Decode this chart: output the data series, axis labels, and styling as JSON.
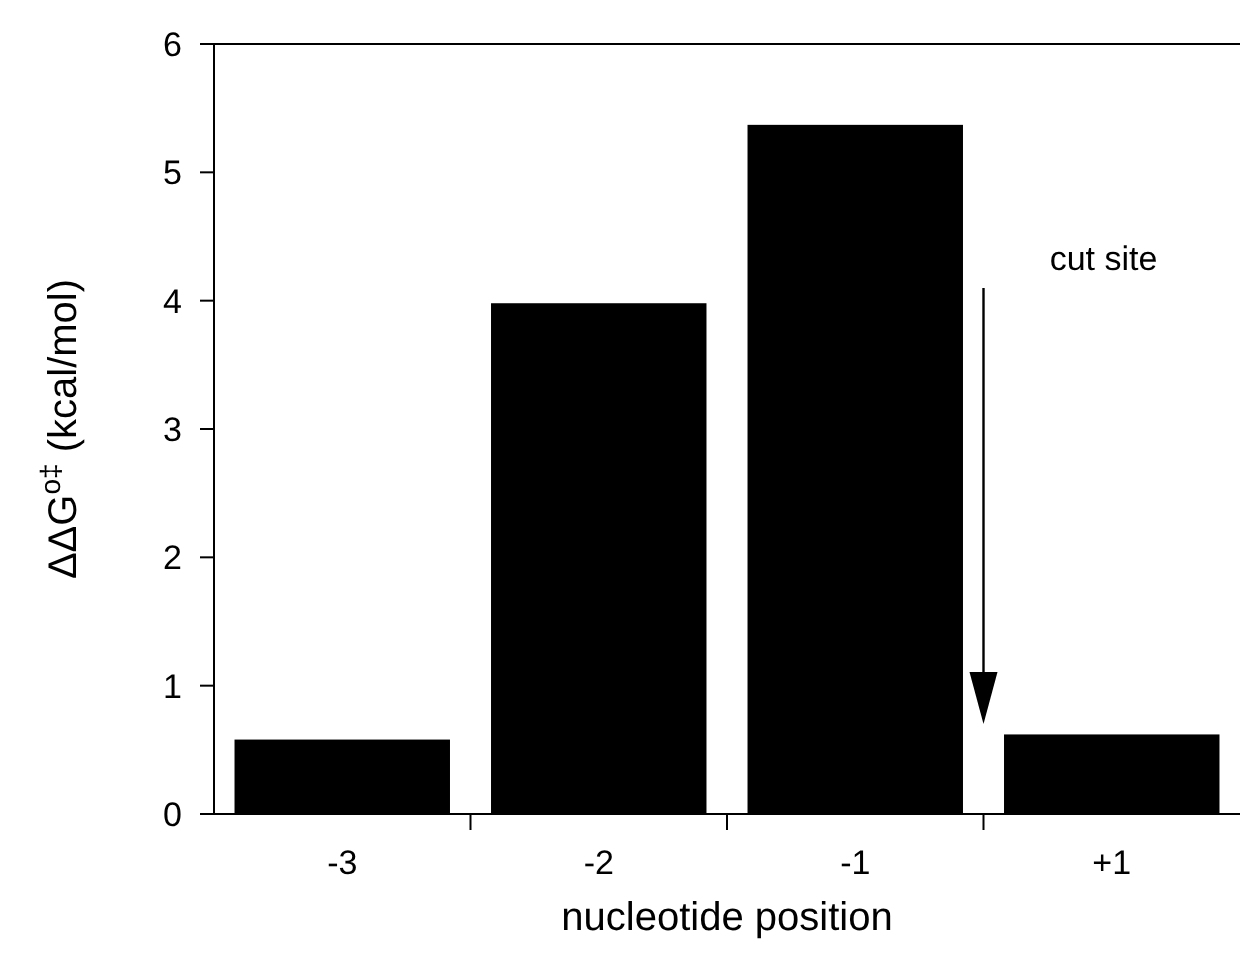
{
  "chart_data": {
    "type": "bar",
    "xlabel": "nucleotide position",
    "ylabel": "ΔΔG$^{o‡}$ (kcal/mol)",
    "categories": [
      "-3",
      "-2",
      "-1",
      "+1"
    ],
    "values": [
      0.58,
      3.98,
      5.37,
      0.62
    ],
    "color": "#000000",
    "ylim": [
      0,
      6
    ],
    "yticks": [
      0,
      1,
      2,
      3,
      4,
      5,
      6
    ],
    "grid": false,
    "annotations": [
      "cut site"
    ]
  }
}
